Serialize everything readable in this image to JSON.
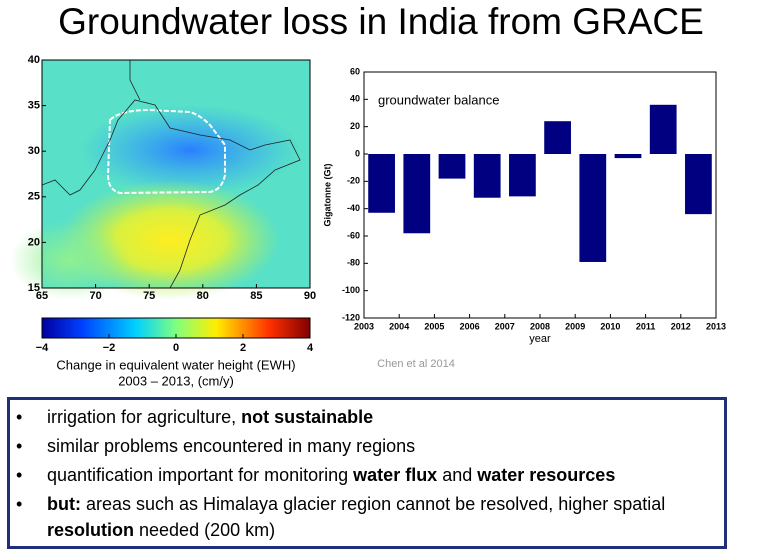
{
  "title": "Groundwater loss in India from GRACE",
  "map": {
    "xticks": [
      65,
      70,
      75,
      80,
      85,
      90
    ],
    "yticks": [
      15,
      20,
      25,
      30,
      35,
      40
    ],
    "xlim": [
      65,
      90
    ],
    "ylim": [
      15,
      40
    ],
    "colorbar": {
      "ticks": [
        {
          "value": -4,
          "label": "−4"
        },
        {
          "value": -2,
          "label": "−2"
        },
        0,
        2,
        4
      ],
      "lim": [
        -4,
        4
      ]
    },
    "caption": [
      "Change in equivalent water height (EWH)",
      "2003 – 2013, (cm/y)"
    ]
  },
  "citation": "Chen et al 2014",
  "chart_data": {
    "type": "bar",
    "annotation": "groundwater balance",
    "y_label": "Gigatonne (Gt)",
    "x_label": "year",
    "x": [
      2003.5,
      2004.5,
      2005.5,
      2006.5,
      2007.5,
      2008.5,
      2009.5,
      2010.5,
      2011.5,
      2012.5
    ],
    "values": [
      -43,
      -58,
      -18,
      -32,
      -31,
      24,
      -79,
      -3,
      36,
      -44
    ],
    "color": "#000080",
    "xlim": [
      2003,
      2013
    ],
    "xticks": [
      2003,
      2004,
      2005,
      2006,
      2007,
      2008,
      2009,
      2010,
      2011,
      2012,
      2013
    ],
    "ylim": [
      -120,
      60
    ],
    "yticks": [
      -120,
      -100,
      -80,
      -60,
      -40,
      -20,
      0,
      20,
      40,
      60
    ]
  },
  "bullets": [
    [
      {
        "text": "irrigation for agriculture, ",
        "bold": false
      },
      {
        "text": "not sustainable",
        "bold": true
      }
    ],
    [
      {
        "text": "similar problems encountered in many regions",
        "bold": false
      }
    ],
    [
      {
        "text": "quantification important for monitoring ",
        "bold": false
      },
      {
        "text": "water flux",
        "bold": true
      },
      {
        "text": " and ",
        "bold": false
      },
      {
        "text": "water resources",
        "bold": true
      }
    ],
    [
      {
        "text": "but:",
        "bold": true
      },
      {
        "text": " areas such as Himalaya glacier region cannot be resolved, higher spatial ",
        "bold": false
      },
      {
        "text": "resolution",
        "bold": true
      },
      {
        "text": " needed (200 km)",
        "bold": false
      }
    ]
  ]
}
